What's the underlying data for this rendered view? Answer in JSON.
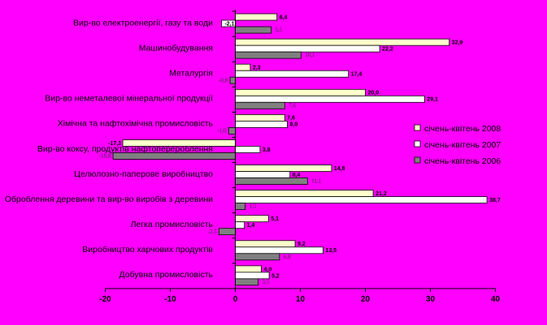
{
  "chart_data": {
    "type": "bar",
    "orientation": "horizontal",
    "categories": [
      "Вир-во електроенергії, газу та води",
      "Машинобудування",
      "Металургія",
      "Вир-во неметалевої мінеральної продукції",
      "Хімічна та нафтохімічна промисловість",
      "Вир-во коксу, продуктів нафтоперероблення",
      "Целюлозно-паперове виробництво",
      "Оброблення деревини та вир-во виробів з деревини",
      "Легка промисловість",
      "Виробництво харчових продуктів",
      "Добувна промисловість"
    ],
    "series": [
      {
        "name": "січень-квітень 2008",
        "color": "#ffffcc",
        "values": [
          6.4,
          32.9,
          2.3,
          20.0,
          7.6,
          -17.3,
          14.8,
          21.2,
          5.1,
          9.2,
          4.0
        ],
        "labels": [
          "6,4",
          "32,9",
          "2,3",
          "20,0",
          "7,6",
          "-17,3",
          "14,8",
          "21,2",
          "5,1",
          "9,2",
          "4,0"
        ]
      },
      {
        "name": "січень-квітень 2007",
        "color": "#ffffff",
        "values": [
          -2.1,
          22.2,
          17.4,
          29.1,
          8.0,
          3.8,
          8.4,
          38.7,
          1.4,
          13.5,
          5.2
        ],
        "labels": [
          "-2,1",
          "22,2",
          "17,4",
          "29,1",
          "8,0",
          "3,8",
          "8,4",
          "38,7",
          "1,4",
          "13,5",
          "5,2"
        ]
      },
      {
        "name": "січень-квітень 2006",
        "color": "#808080",
        "values": [
          5.5,
          10.1,
          -0.8,
          7.6,
          -1.0,
          -18.8,
          11.1,
          1.5,
          -2.5,
          6.8,
          3.5
        ],
        "labels": [
          "5,5",
          "10,1",
          "-0,8",
          "7,6",
          "-1,0",
          "-18,8",
          "11,1",
          "1,5",
          "-2,5",
          "6,8",
          "3,5"
        ]
      }
    ],
    "xlim": [
      -20,
      40
    ],
    "xticks": [
      "-20",
      "-10",
      "0",
      "10",
      "20",
      "30",
      "40"
    ],
    "legend_position": "right",
    "grid": false,
    "title": "",
    "xlabel": "",
    "ylabel": ""
  }
}
